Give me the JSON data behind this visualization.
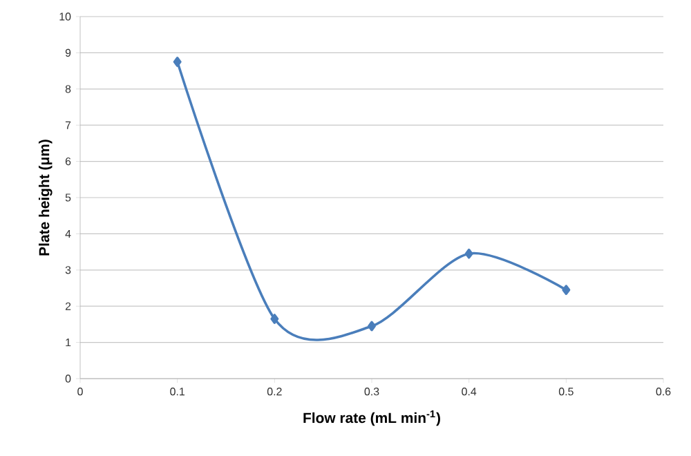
{
  "chart_data": {
    "type": "line",
    "xlabel": "Flow rate (mL min$^{-1}$)",
    "ylabel": "Plate height (μm)",
    "x": [
      0.1,
      0.2,
      0.3,
      0.4,
      0.5
    ],
    "series": [
      {
        "color": "#4a7ebb",
        "values": [
          8.75,
          1.65,
          1.45,
          3.45,
          2.45
        ]
      }
    ],
    "xlim": [
      0,
      0.6
    ],
    "ylim": [
      0,
      10
    ],
    "xticks": [
      0,
      0.1,
      0.2,
      0.3,
      0.4,
      0.5,
      0.6
    ],
    "yticks": [
      0,
      1,
      2,
      3,
      4,
      5,
      6,
      7,
      8,
      9,
      10
    ],
    "grid": "y",
    "marker": "diamond",
    "line_style": "solid"
  }
}
